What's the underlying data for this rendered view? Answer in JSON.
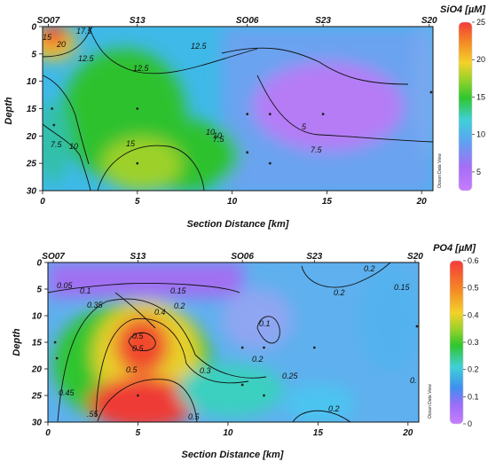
{
  "chart_data": [
    {
      "type": "heatmap",
      "variable": "SiO4 [µM]",
      "xlabel": "Section Distance [km]",
      "ylabel": "Depth",
      "xlim": [
        0,
        20.6
      ],
      "ylim": [
        30,
        0
      ],
      "x_ticks": [
        "0",
        "5",
        "10",
        "15",
        "20"
      ],
      "y_ticks": [
        "0",
        "5",
        "10",
        "15",
        "20",
        "25",
        "30"
      ],
      "stations": [
        {
          "name": "SO07",
          "km": 0.3
        },
        {
          "name": "S13",
          "km": 5.0
        },
        {
          "name": "SO06",
          "km": 10.8
        },
        {
          "name": "S23",
          "km": 14.8
        },
        {
          "name": "S20",
          "km": 20.4
        }
      ],
      "colorbar": {
        "min": 2.5,
        "max": 25,
        "ticks": [
          "5",
          "10",
          "15",
          "20",
          "25"
        ]
      },
      "contour_labels": [
        "17.5",
        "15",
        "20",
        "12.5",
        "12.5",
        "7.5",
        "12.5",
        "10",
        "7.5",
        "15",
        "10",
        "5",
        "7.5",
        "10"
      ],
      "watermark": "Ocean Data View"
    },
    {
      "type": "heatmap",
      "variable": "PO4 [µM]",
      "xlabel": "Section Distance [km]",
      "ylabel": "Depth",
      "xlim": [
        0,
        20.6
      ],
      "ylim": [
        30,
        0
      ],
      "x_ticks": [
        "0",
        "5",
        "10",
        "15",
        "20"
      ],
      "y_ticks": [
        "0",
        "5",
        "10",
        "15",
        "20",
        "25",
        "30"
      ],
      "stations": [
        {
          "name": "SO07",
          "km": 0.3
        },
        {
          "name": "S13",
          "km": 5.0
        },
        {
          "name": "SO06",
          "km": 10.8
        },
        {
          "name": "S23",
          "km": 14.8
        },
        {
          "name": "S20",
          "km": 20.4
        }
      ],
      "colorbar": {
        "min": 0,
        "max": 0.6,
        "ticks": [
          "0",
          "0.1",
          "0.2",
          "0.3",
          "0.4",
          "0.5",
          "0.6"
        ]
      },
      "contour_labels": [
        "0.05",
        "0.1",
        "0.15",
        "0.2",
        "0.2",
        "0.2",
        "0.15",
        "0.35",
        "0.4",
        "0.5",
        "0.5",
        "0.1",
        "0.3",
        "0.5",
        "0.45",
        "0.25",
        "0.2",
        ".55",
        "0.5",
        "0.2",
        "0."
      ],
      "watermark": "Ocean Data View"
    }
  ]
}
